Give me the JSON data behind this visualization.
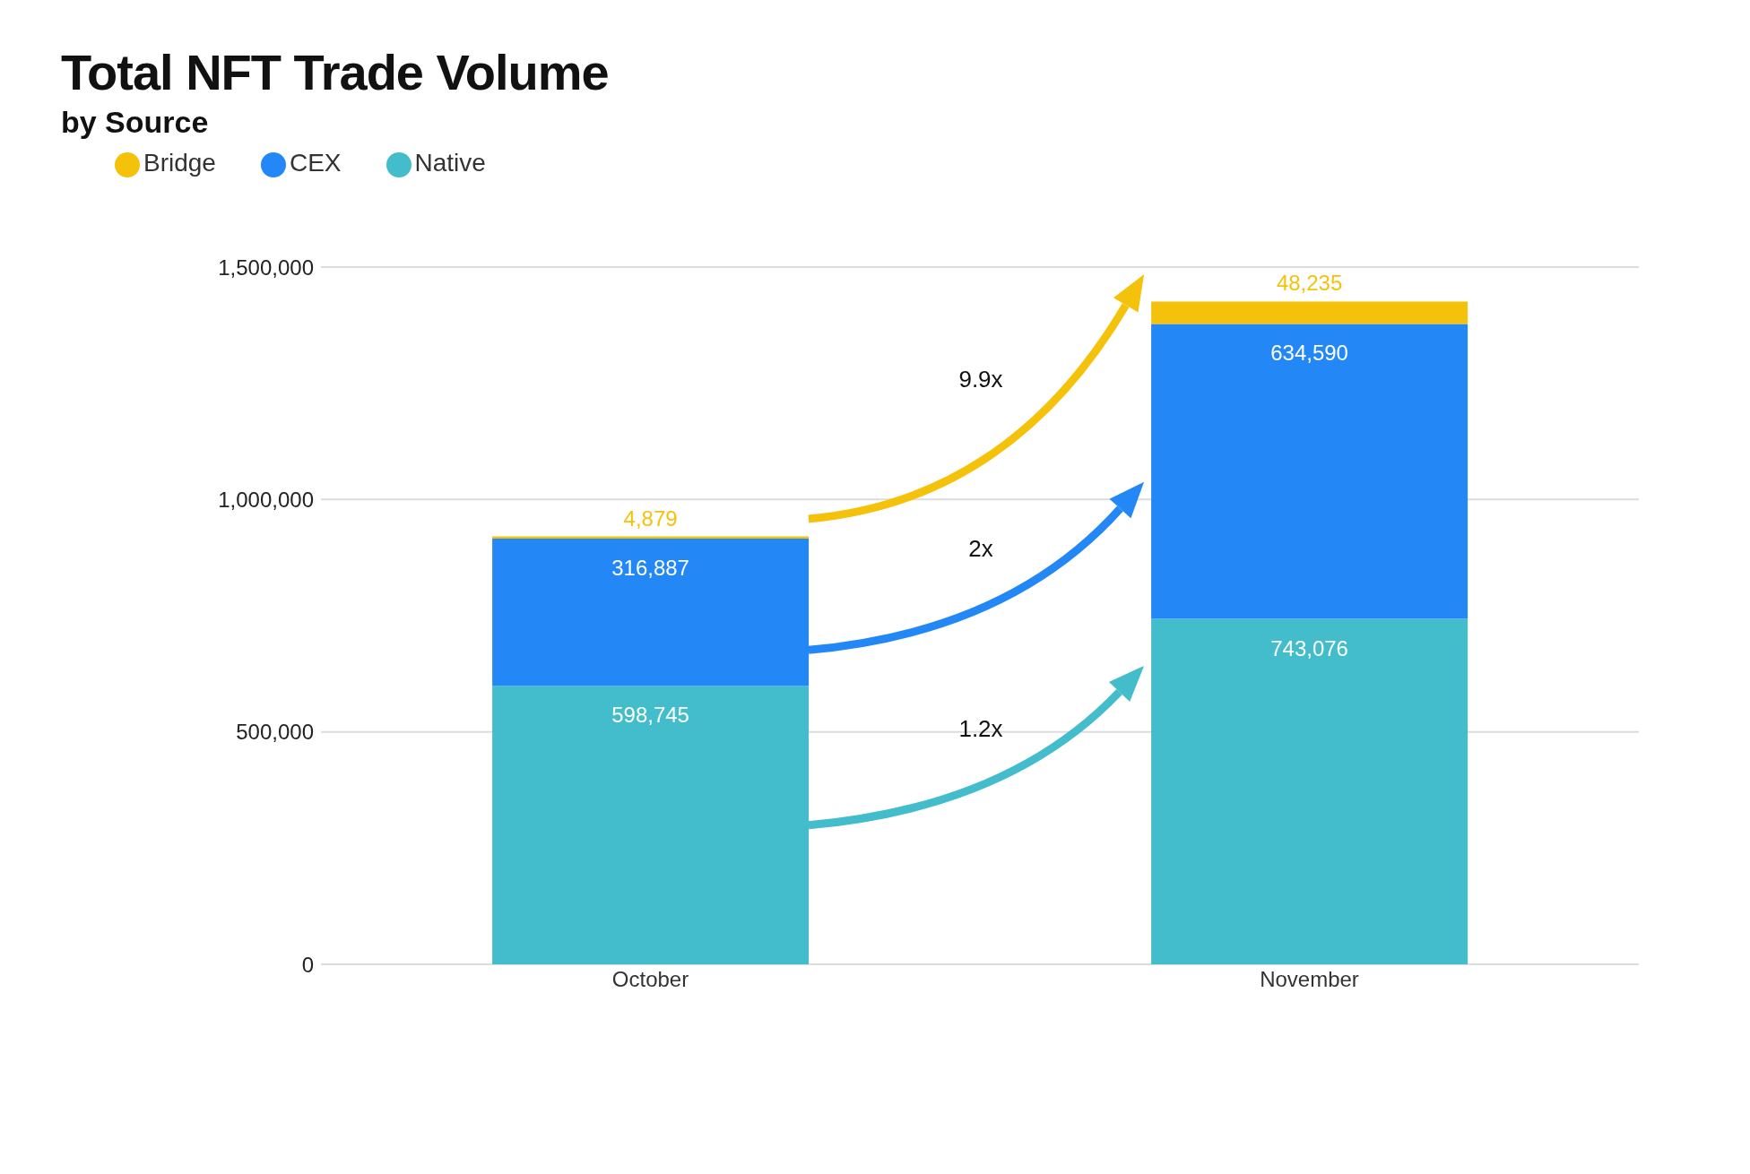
{
  "chart_data": {
    "type": "bar",
    "title": "Total NFT Trade Volume",
    "subtitle": "by Source",
    "categories": [
      "October",
      "November"
    ],
    "stacked": true,
    "legend": "top left",
    "grid": "y",
    "ylim": [
      0,
      1500000
    ],
    "yticks": [
      0,
      {
        "value": 500000,
        "label": "500,000"
      },
      {
        "value": 1000000,
        "label": "1,000,000"
      },
      {
        "value": 1500000,
        "label": "1,500,000"
      }
    ],
    "series": [
      {
        "name": "Native",
        "color": "#43bccb",
        "values": [
          598745,
          743076
        ],
        "value_labels": [
          "598,745",
          "743,076"
        ]
      },
      {
        "name": "CEX",
        "color": "#2387f5",
        "values": [
          316887,
          634590
        ],
        "value_labels": [
          "316,887",
          "634,590"
        ]
      },
      {
        "name": "Bridge",
        "color": "#f5c20b",
        "values": [
          4879,
          48235
        ],
        "value_labels": [
          "4,879",
          "48,235"
        ]
      }
    ],
    "annotations": [
      "1.2x",
      "2x",
      "9.9x"
    ]
  }
}
